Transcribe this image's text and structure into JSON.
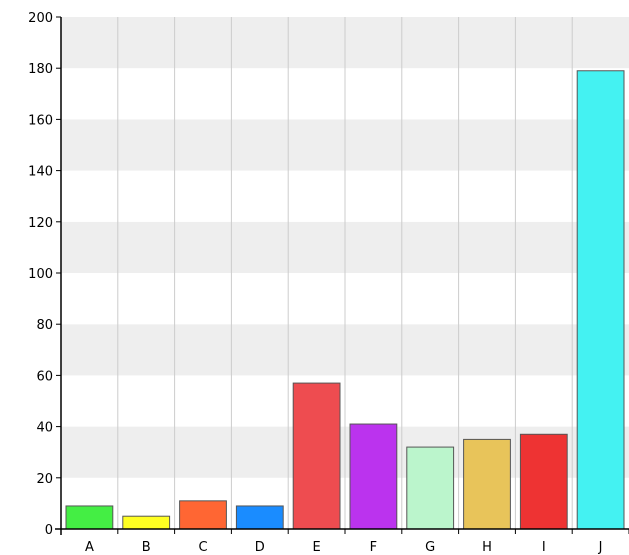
{
  "chart_data": {
    "type": "bar",
    "title": "",
    "xlabel": "",
    "ylabel": "",
    "ylim": [
      0,
      200
    ],
    "y_ticks": [
      "0",
      "20",
      "40",
      "60",
      "80",
      "100",
      "120",
      "140",
      "160",
      "180",
      "200"
    ],
    "grid": true,
    "categories": [
      "A",
      "B",
      "C",
      "D",
      "E",
      "F",
      "G",
      "H",
      "I",
      "J"
    ],
    "values": [
      9,
      5,
      11,
      9,
      57,
      41,
      32,
      35,
      37,
      179
    ],
    "colors": [
      "#44ee44",
      "#ffff22",
      "#ff6633",
      "#1a8cff",
      "#ee4c50",
      "#bb33ee",
      "#bbf5cc",
      "#e8c45a",
      "#ee3333",
      "#44f2f2"
    ],
    "band_color": "#eeeeee",
    "grid_color": "#cccccc"
  }
}
